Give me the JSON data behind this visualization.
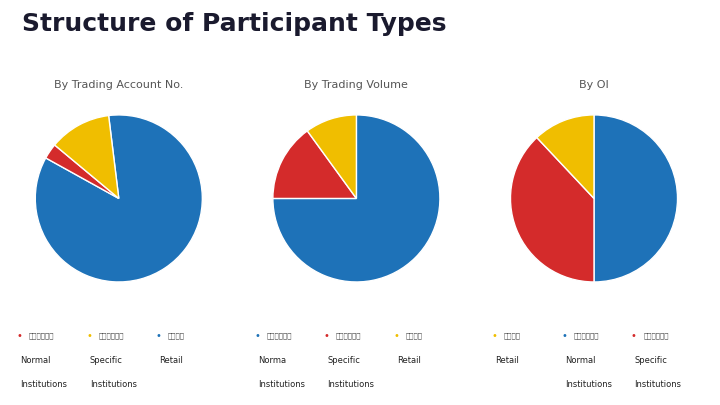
{
  "title": "Structure of Participant Types",
  "title_fontsize": 18,
  "title_color": "#1a1a2e",
  "bg_color": "#ffffff",
  "subtitle_color": "#555555",
  "subtitle_fontsize": 8,
  "pie1": {
    "subtitle": "By Trading Account No.",
    "values": [
      85,
      3,
      12
    ],
    "colors": [
      "#1e72b8",
      "#d42b2b",
      "#f0b e00"
    ],
    "startangle": 97,
    "counterclock": false,
    "legend": [
      {
        "label_cn": "一般口位客口",
        "label_en1": "Normal",
        "label_en2": "Institutions",
        "color": "#d42b2b"
      },
      {
        "label_cn": "特殊口位客口",
        "label_en1": "Specific",
        "label_en2": "Institutions",
        "color": "#f0be00"
      },
      {
        "label_cn": "个人客口",
        "label_en1": "Retail",
        "label_en2": "",
        "color": "#1e72b8"
      }
    ]
  },
  "pie2": {
    "subtitle": "By Trading Volume",
    "values": [
      75,
      15,
      10
    ],
    "colors": [
      "#1e72b8",
      "#d42b2b",
      "#f0be00"
    ],
    "startangle": 90,
    "counterclock": false,
    "legend": [
      {
        "label_cn": "一般单位客户",
        "label_en1": "Norma",
        "label_en2": "Institutions",
        "color": "#1e72b8"
      },
      {
        "label_cn": "特殊单位客户",
        "label_en1": "Specific",
        "label_en2": "Institutions",
        "color": "#d42b2b"
      },
      {
        "label_cn": "个人客户",
        "label_en1": "Retail",
        "label_en2": "",
        "color": "#f0be00"
      }
    ]
  },
  "pie3": {
    "subtitle": "By OI",
    "values": [
      50,
      38,
      12
    ],
    "colors": [
      "#1e72b8",
      "#d42b2b",
      "#f0be00"
    ],
    "startangle": 90,
    "counterclock": false,
    "legend": [
      {
        "label_cn": "个人客口",
        "label_en1": "Retail",
        "label_en2": "",
        "color": "#f0be00"
      },
      {
        "label_cn": "一般口位客口",
        "label_en1": "Normal",
        "label_en2": "Institutions",
        "color": "#1e72b8"
      },
      {
        "label_cn": "特殊口位客口",
        "label_en1": "Specific",
        "label_en2": "Institutions",
        "color": "#d42b2b"
      }
    ]
  }
}
